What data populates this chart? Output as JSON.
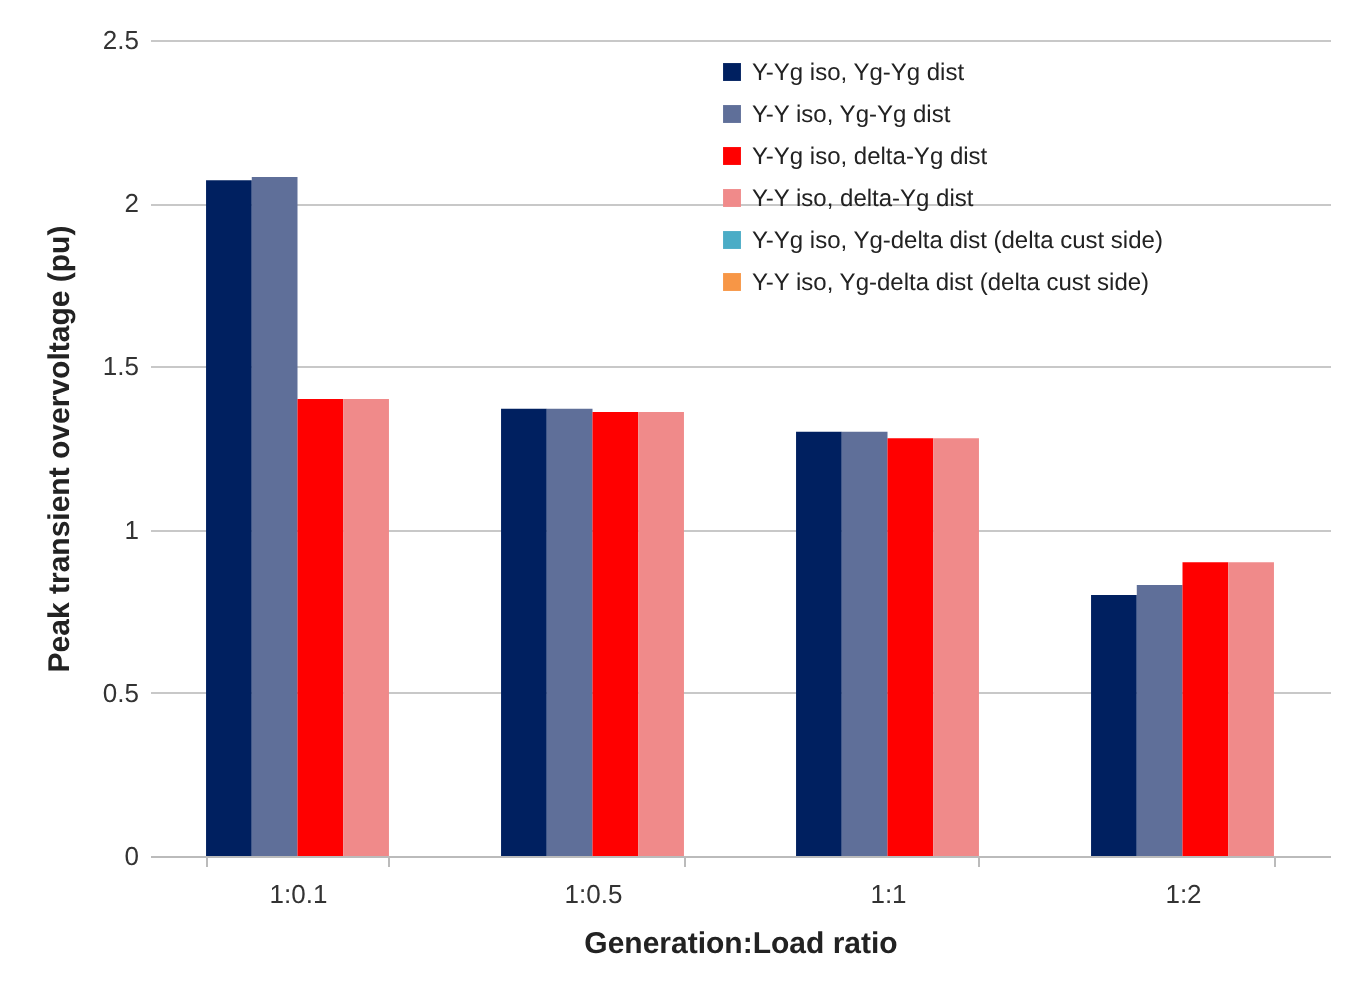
{
  "chart_data": {
    "type": "bar",
    "xlabel": "Generation:Load ratio",
    "ylabel": "Peak transient overvoltage (pu)",
    "categories": [
      "1:0.1",
      "1:0.5",
      "1:1",
      "1:2"
    ],
    "series": [
      {
        "name": "Y-Yg iso, Yg-Yg dist",
        "color": "#002060",
        "values": [
          2.07,
          1.37,
          1.3,
          0.8
        ]
      },
      {
        "name": "Y-Y iso, Yg-Yg dist",
        "color": "#5f6f99",
        "values": [
          2.08,
          1.37,
          1.3,
          0.83
        ]
      },
      {
        "name": "Y-Yg iso, delta-Yg dist",
        "color": "#ff0000",
        "values": [
          1.4,
          1.36,
          1.28,
          0.9
        ]
      },
      {
        "name": "Y-Y iso, delta-Yg dist",
        "color": "#f08a8a",
        "values": [
          1.4,
          1.36,
          1.28,
          0.9
        ]
      },
      {
        "name": "Y-Yg iso, Yg-delta dist (delta cust side)",
        "color": "#4bacc6",
        "values": [
          null,
          null,
          null,
          null
        ]
      },
      {
        "name": "Y-Y iso, Yg-delta dist (delta cust side)",
        "color": "#f79646",
        "values": [
          null,
          null,
          null,
          null
        ]
      }
    ],
    "ylim": [
      0,
      2.5
    ],
    "yticks": [
      0,
      0.5,
      1,
      1.5,
      2,
      2.5
    ],
    "grid": "y",
    "legend": "top right"
  }
}
